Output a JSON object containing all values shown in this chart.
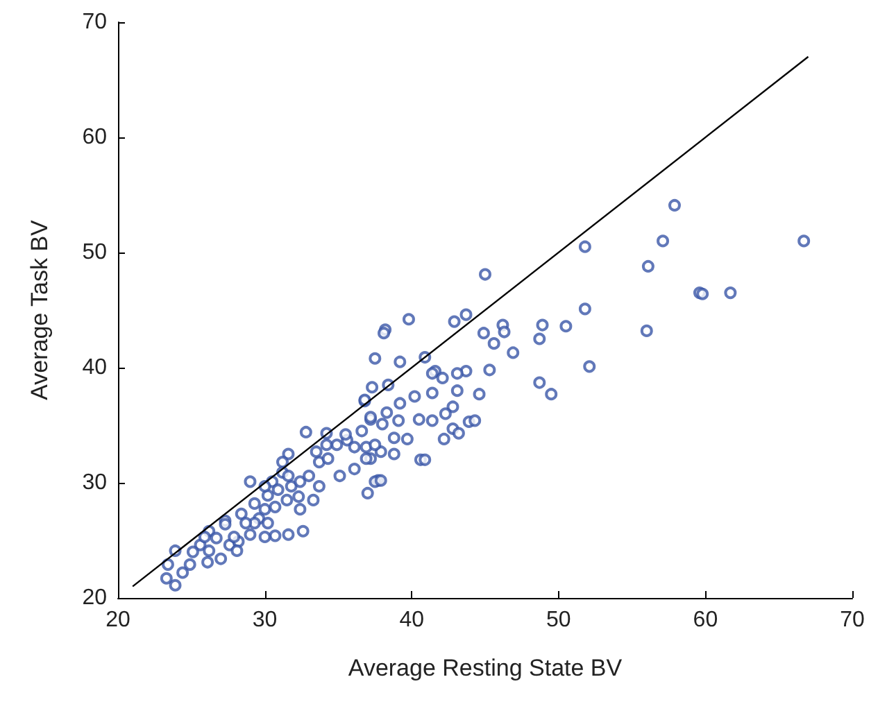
{
  "chart_data": {
    "type": "scatter",
    "xlabel": "Average Resting State BV",
    "ylabel": "Average Task BV",
    "xlim": [
      20,
      70
    ],
    "ylim": [
      20,
      70
    ],
    "xticks": [
      20,
      30,
      40,
      50,
      60,
      70
    ],
    "yticks": [
      20,
      30,
      40,
      50,
      60,
      70
    ],
    "grid": false,
    "marker": "circle",
    "series": [
      {
        "color": "#3a56a8",
        "x": [
          57.9,
          51.8,
          57.1,
          66.7,
          56.1,
          45.0,
          59.6,
          59.8,
          61.7,
          51.8,
          56.0,
          52.1,
          43.7,
          42.9,
          39.8,
          38.2,
          38.1,
          44.9,
          46.2,
          46.3,
          45.6,
          48.9,
          50.5,
          48.7,
          46.9,
          37.5,
          39.2,
          40.9,
          45.3,
          48.7,
          49.5,
          43.7,
          43.1,
          41.6,
          41.4,
          42.1,
          43.1,
          44.6,
          42.8,
          41.4,
          42.3,
          43.9,
          44.3,
          42.2,
          42.8,
          43.2,
          40.6,
          40.9,
          39.7,
          40.2,
          40.5,
          39.2,
          38.4,
          37.3,
          36.8,
          38.3,
          39.1,
          37.2,
          38.0,
          38.8,
          36.6,
          35.6,
          36.9,
          37.9,
          38.8,
          36.1,
          37.7,
          37.2,
          41.4,
          32.8,
          29.0,
          31.6,
          31.2,
          34.2,
          35.1,
          37.0,
          37.5,
          37.9,
          32.6,
          31.6,
          30.7,
          30.0,
          29.6,
          28.4,
          27.3,
          27.3,
          26.2,
          23.9,
          23.4,
          23.3,
          23.9,
          24.4,
          24.9,
          25.6,
          26.2,
          26.1,
          27.0,
          27.6,
          28.2,
          29.0,
          29.3,
          30.0,
          30.2,
          30.5,
          30.9,
          31.8,
          32.4,
          33.0,
          33.7,
          33.7,
          34.3,
          34.9,
          35.5,
          36.1,
          36.9,
          37.5,
          37.2,
          36.8,
          32.3,
          31.5,
          32.4,
          33.3,
          30.7,
          29.3,
          30.2,
          28.7,
          26.7,
          25.1,
          28.1,
          25.9,
          34.2,
          33.5,
          31.2,
          31.6,
          30.0,
          27.9
        ],
        "values": [
          54.1,
          50.5,
          51.0,
          51.0,
          48.8,
          48.1,
          46.5,
          46.4,
          46.5,
          45.1,
          43.2,
          40.1,
          44.6,
          44.0,
          44.2,
          43.3,
          43.0,
          43.0,
          43.7,
          43.1,
          42.1,
          43.7,
          43.6,
          42.5,
          41.3,
          40.8,
          40.5,
          40.9,
          39.8,
          38.7,
          37.7,
          39.7,
          39.5,
          39.7,
          39.5,
          39.1,
          38.0,
          37.7,
          36.6,
          35.4,
          36.0,
          35.3,
          35.4,
          33.8,
          34.7,
          34.3,
          32.0,
          32.0,
          33.8,
          37.5,
          35.5,
          36.9,
          38.5,
          38.3,
          37.1,
          36.1,
          35.4,
          35.5,
          35.1,
          33.9,
          34.5,
          33.7,
          33.1,
          32.7,
          32.5,
          31.2,
          30.2,
          32.1,
          37.8,
          34.4,
          30.1,
          32.5,
          31.8,
          34.3,
          30.6,
          29.1,
          30.1,
          30.2,
          25.8,
          25.5,
          25.4,
          25.3,
          26.9,
          27.3,
          26.7,
          26.4,
          25.8,
          24.1,
          22.9,
          21.7,
          21.1,
          22.2,
          22.9,
          24.6,
          24.1,
          23.1,
          23.4,
          24.6,
          24.9,
          25.5,
          26.5,
          27.7,
          28.9,
          30.1,
          29.4,
          29.7,
          30.1,
          30.6,
          29.7,
          31.8,
          32.1,
          33.3,
          34.2,
          33.1,
          32.1,
          33.3,
          35.7,
          37.2,
          28.8,
          28.5,
          27.7,
          28.5,
          27.9,
          28.2,
          26.5,
          26.5,
          25.2,
          24.0,
          24.1,
          25.3,
          33.3,
          32.7,
          30.9,
          30.6,
          29.7,
          25.3
        ]
      },
      {
        "type": "line",
        "color": "#000000",
        "marker": "none",
        "line_style": "solid",
        "x": [
          21,
          67
        ],
        "values": [
          21,
          67
        ]
      }
    ]
  }
}
